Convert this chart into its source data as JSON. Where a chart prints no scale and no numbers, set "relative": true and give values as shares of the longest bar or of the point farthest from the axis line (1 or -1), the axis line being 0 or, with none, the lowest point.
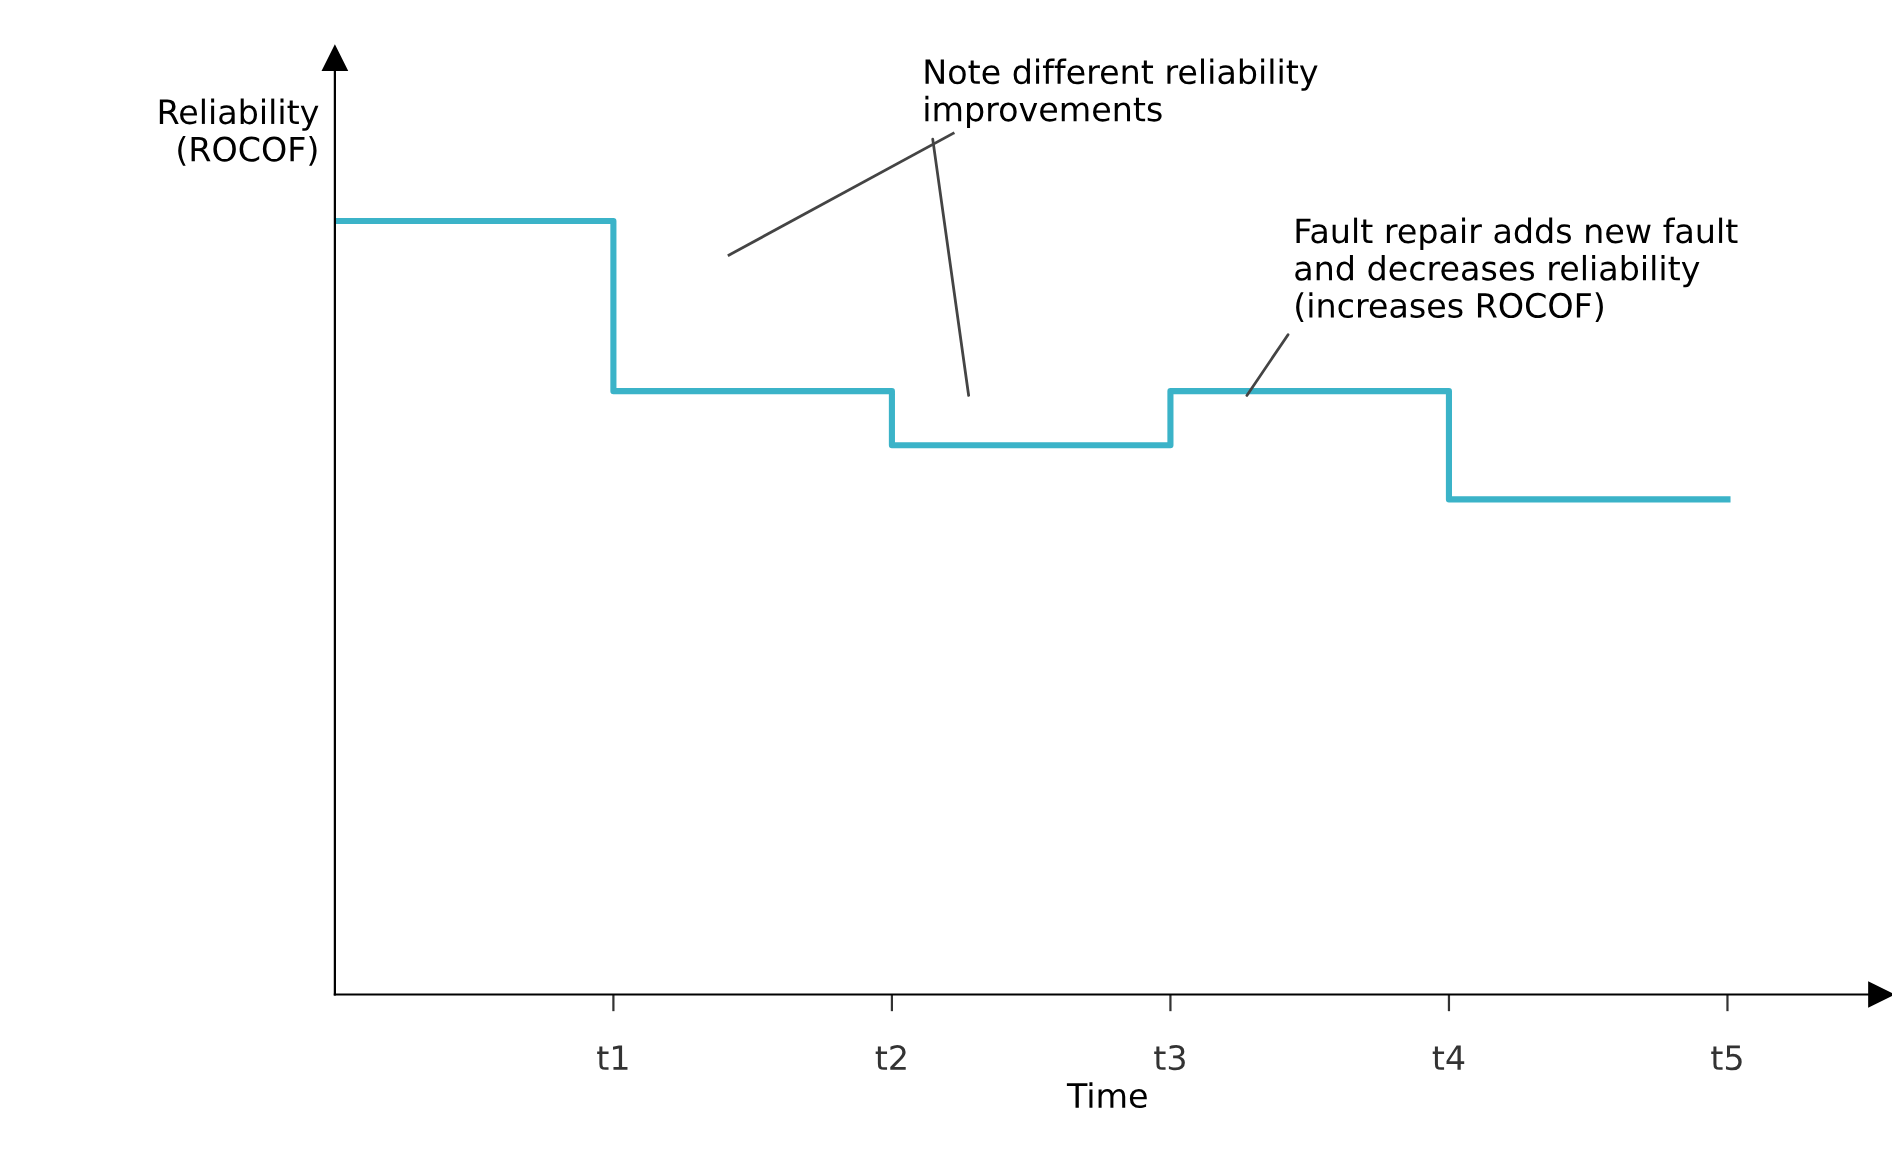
{
  "chart_data": {
    "type": "step",
    "relative": true,
    "ylabel": "Reliability\n(ROCOF)",
    "xlabel": "Time",
    "categories": [
      null,
      "t1",
      "t2",
      "t3",
      "t4",
      "t5"
    ],
    "series": [
      {
        "color": "#3bb3c8",
        "values": [
          1,
          0.78,
          0.71,
          0.78,
          0.64,
          0.64
        ]
      }
    ],
    "annotations": [
      "Note different reliability\nimprovements",
      "Fault repair adds new fault\nand decreases reliability\n(increases ROCOF)"
    ],
    "grid": false,
    "legend": false
  }
}
